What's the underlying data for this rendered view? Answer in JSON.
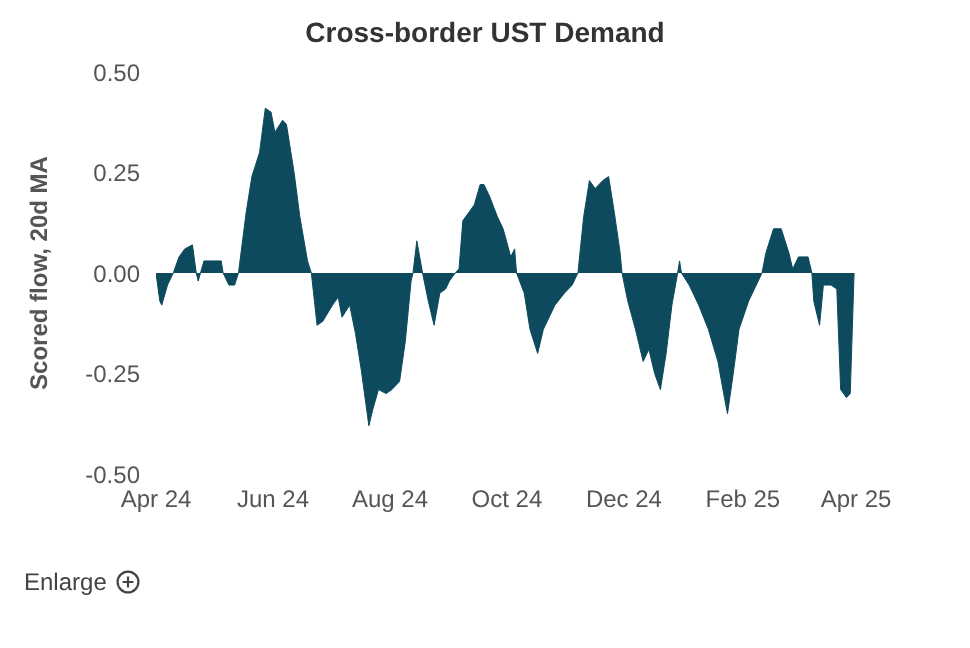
{
  "chart_data": {
    "type": "area",
    "title": "Cross-border UST Demand",
    "ylabel": "Scored flow, 20d MA",
    "x": [
      "2024-04-01",
      "2024-04-03",
      "2024-04-04",
      "2024-04-07",
      "2024-04-10",
      "2024-04-13",
      "2024-04-16",
      "2024-04-20",
      "2024-04-22",
      "2024-04-23",
      "2024-04-26",
      "2024-04-30",
      "2024-05-05",
      "2024-05-06",
      "2024-05-09",
      "2024-05-12",
      "2024-05-14",
      "2024-05-18",
      "2024-05-21",
      "2024-05-25",
      "2024-05-28",
      "2024-05-31",
      "2024-06-02",
      "2024-06-06",
      "2024-06-08",
      "2024-06-12",
      "2024-06-15",
      "2024-06-19",
      "2024-06-21",
      "2024-06-24",
      "2024-06-27",
      "2024-07-02",
      "2024-07-05",
      "2024-07-07",
      "2024-07-11",
      "2024-07-14",
      "2024-07-17",
      "2024-07-21",
      "2024-07-23",
      "2024-07-26",
      "2024-07-30",
      "2024-08-02",
      "2024-08-06",
      "2024-08-09",
      "2024-08-12",
      "2024-08-13",
      "2024-08-15",
      "2024-08-18",
      "2024-08-21",
      "2024-08-24",
      "2024-08-27",
      "2024-08-30",
      "2024-09-01",
      "2024-09-04",
      "2024-09-06",
      "2024-09-08",
      "2024-09-14",
      "2024-09-17",
      "2024-09-19",
      "2024-09-22",
      "2024-09-26",
      "2024-09-29",
      "2024-10-03",
      "2024-10-05",
      "2024-10-06",
      "2024-10-10",
      "2024-10-13",
      "2024-10-17",
      "2024-10-20",
      "2024-10-26",
      "2024-10-31",
      "2024-11-04",
      "2024-11-07",
      "2024-11-10",
      "2024-11-13",
      "2024-11-16",
      "2024-11-20",
      "2024-11-23",
      "2024-11-26",
      "2024-11-29",
      "2024-11-30",
      "2024-12-03",
      "2024-12-07",
      "2024-12-11",
      "2024-12-14",
      "2024-12-17",
      "2024-12-20",
      "2024-12-23",
      "2024-12-26",
      "2024-12-29",
      "2024-12-30",
      "2024-12-31",
      "2025-01-04",
      "2025-01-09",
      "2025-01-14",
      "2025-01-19",
      "2025-01-22",
      "2025-01-24",
      "2025-01-27",
      "2025-01-30",
      "2025-02-04",
      "2025-02-09",
      "2025-02-11",
      "2025-02-13",
      "2025-02-17",
      "2025-02-21",
      "2025-02-25",
      "2025-02-27",
      "2025-03-02",
      "2025-03-07",
      "2025-03-09",
      "2025-03-10",
      "2025-03-13",
      "2025-03-15",
      "2025-03-19",
      "2025-03-22",
      "2025-03-24",
      "2025-03-27",
      "2025-03-29",
      "2025-03-31"
    ],
    "series": [
      {
        "color": "#0d4a5e",
        "values": [
          0,
          -0.07,
          -0.08,
          -0.03,
          0,
          0.04,
          0.06,
          0.07,
          0,
          -0.02,
          0.03,
          0.03,
          0.03,
          0,
          -0.03,
          -0.03,
          0,
          0.15,
          0.24,
          0.3,
          0.41,
          0.4,
          0.35,
          0.38,
          0.37,
          0.25,
          0.14,
          0.03,
          0,
          -0.13,
          -0.12,
          -0.08,
          -0.06,
          -0.11,
          -0.08,
          -0.15,
          -0.24,
          -0.38,
          -0.34,
          -0.29,
          -0.3,
          -0.29,
          -0.27,
          -0.17,
          -0.02,
          0,
          0.08,
          0,
          -0.07,
          -0.13,
          -0.05,
          -0.04,
          -0.02,
          0,
          0.01,
          0.13,
          0.17,
          0.22,
          0.22,
          0.19,
          0.14,
          0.11,
          0.04,
          0.06,
          0,
          -0.05,
          -0.14,
          -0.2,
          -0.14,
          -0.08,
          -0.05,
          -0.03,
          0,
          0.14,
          0.23,
          0.21,
          0.23,
          0.24,
          0.15,
          0.05,
          0,
          -0.07,
          -0.14,
          -0.22,
          -0.19,
          -0.25,
          -0.29,
          -0.2,
          -0.08,
          0,
          0.03,
          0,
          -0.03,
          -0.08,
          -0.14,
          -0.22,
          -0.3,
          -0.35,
          -0.25,
          -0.14,
          -0.07,
          -0.02,
          0,
          0.05,
          0.11,
          0.11,
          0.05,
          0.01,
          0.04,
          0.04,
          0,
          -0.07,
          -0.13,
          -0.03,
          -0.03,
          -0.04,
          -0.29,
          -0.31,
          -0.3,
          0
        ]
      }
    ],
    "xlim": [
      "2024-04-01",
      "2025-04-01"
    ],
    "xticks": [
      {
        "value": "2024-04-01",
        "label": "Apr 24"
      },
      {
        "value": "2024-06-01",
        "label": "Jun 24"
      },
      {
        "value": "2024-08-01",
        "label": "Aug 24"
      },
      {
        "value": "2024-10-01",
        "label": "Oct 24"
      },
      {
        "value": "2024-12-01",
        "label": "Dec 24"
      },
      {
        "value": "2025-02-01",
        "label": "Feb 25"
      },
      {
        "value": "2025-04-01",
        "label": "Apr 25"
      }
    ],
    "ylim": [
      -0.5,
      0.5
    ],
    "yticks": [
      {
        "value": 0.5,
        "label": "0.50"
      },
      {
        "value": 0.25,
        "label": "0.25"
      },
      {
        "value": 0,
        "label": "0.00"
      },
      {
        "value": -0.25,
        "label": "-0.25"
      },
      {
        "value": -0.5,
        "label": "-0.50"
      }
    ],
    "grid": false,
    "annotations": [
      "Enlarge"
    ]
  }
}
